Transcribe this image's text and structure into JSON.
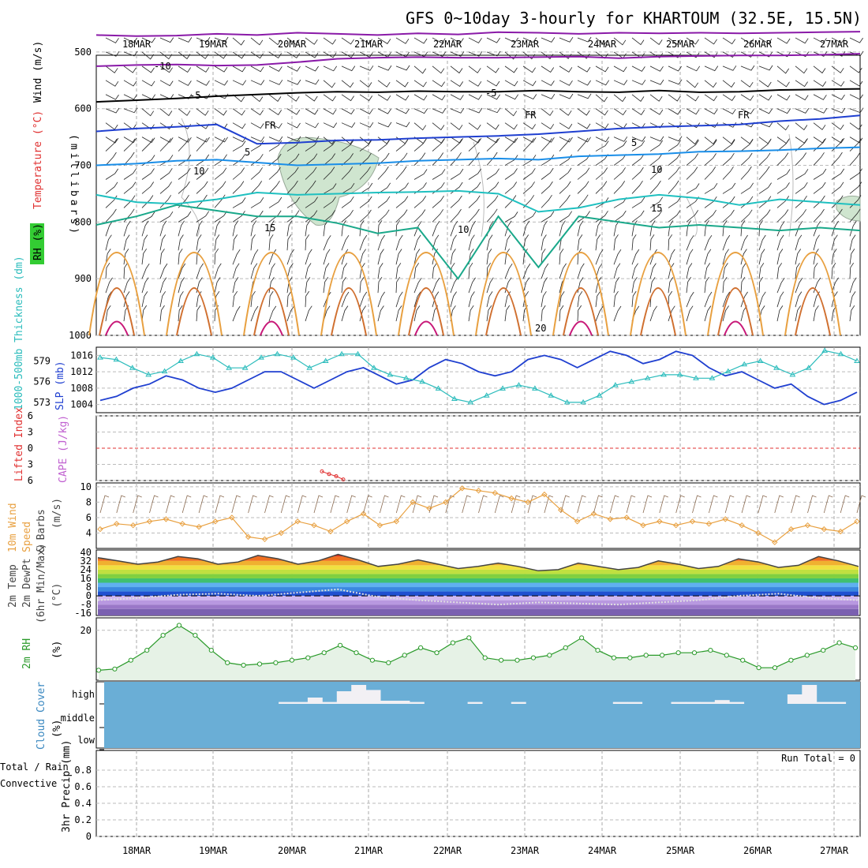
{
  "title": "GFS 0~10day 3-hourly for KHARTOUM (32.5E, 15.5N)",
  "dates": [
    "18MAR",
    "19MAR",
    "20MAR",
    "21MAR",
    "22MAR",
    "23MAR",
    "24MAR",
    "25MAR",
    "26MAR",
    "27MAR"
  ],
  "run_total": "Run Total = 0",
  "colors": {
    "cyan": "#2bbcbc",
    "blue": "#1f3fd0",
    "orange": "#e8a040",
    "red": "#e03030",
    "green": "#2a9a2a",
    "purple": "#8a1aa8",
    "cloud": "#6aaed6",
    "grid": "#999999"
  },
  "chart_data": [
    {
      "type": "line",
      "name": "upper-air",
      "ylabel_parts": [
        "Wind (m/s)",
        "Temperature (°C)",
        "RH (%)",
        "(millibars)"
      ],
      "y_ticks": [
        500,
        600,
        700,
        800,
        900,
        1000
      ],
      "ylim": [
        1000,
        450
      ],
      "contour_labels": [
        "-10",
        "-5",
        "-5",
        "FR",
        "FR",
        "FR",
        "5",
        "5",
        "10",
        "10",
        "10",
        "15",
        "15",
        "20",
        "20"
      ],
      "isotherms": [
        {
          "name": "-10",
          "color": "#8a1aa8",
          "values": [
            470,
            472,
            471,
            468,
            470,
            466,
            468,
            470,
            467,
            469,
            465,
            466,
            468,
            466,
            467,
            466,
            467,
            466,
            465,
            464
          ]
        },
        {
          "name": "-5",
          "color": "#8a1aa8",
          "values": [
            525,
            523,
            522,
            524,
            523,
            518,
            512,
            510,
            509,
            510,
            510,
            509,
            508,
            511,
            508,
            507,
            506,
            506,
            505,
            503
          ]
        },
        {
          "name": "FR",
          "color": "#000000",
          "values": [
            588,
            585,
            582,
            578,
            575,
            572,
            570,
            571,
            569,
            570,
            570,
            568,
            570,
            571,
            568,
            571,
            570,
            567,
            566,
            565
          ]
        },
        {
          "name": "5",
          "color": "#1f3fd0",
          "values": [
            640,
            635,
            632,
            628,
            662,
            660,
            656,
            655,
            652,
            650,
            648,
            645,
            640,
            635,
            632,
            630,
            628,
            622,
            618,
            612
          ]
        },
        {
          "name": "10",
          "color": "#1a8ee8",
          "values": [
            700,
            697,
            692,
            690,
            695,
            700,
            698,
            696,
            692,
            690,
            688,
            690,
            684,
            682,
            680,
            676,
            675,
            673,
            670,
            668
          ]
        },
        {
          "name": "15",
          "color": "#1fc0c0",
          "values": [
            752,
            765,
            768,
            760,
            748,
            752,
            750,
            748,
            747,
            745,
            750,
            782,
            775,
            760,
            752,
            758,
            770,
            760,
            765,
            770
          ]
        },
        {
          "name": "20",
          "color": "#1aa88a",
          "values": [
            805,
            790,
            770,
            780,
            790,
            790,
            802,
            820,
            810,
            900,
            790,
            880,
            790,
            800,
            810,
            805,
            810,
            815,
            810,
            815
          ]
        }
      ]
    },
    {
      "type": "line",
      "name": "thickness-slp",
      "ylabel_left": "1000-500mb Thickness (dm)",
      "ylabel_right": "SLP (mb)",
      "thickness_ticks": [
        573,
        576,
        579
      ],
      "slp_ticks": [
        1004,
        1008,
        1012,
        1016
      ],
      "series": [
        {
          "name": "SLP (mb)",
          "color": "#1f3fd0",
          "values": [
            1005,
            1006,
            1008,
            1009,
            1011,
            1010,
            1008,
            1007,
            1008,
            1010,
            1012,
            1012,
            1010,
            1008,
            1010,
            1012,
            1013,
            1011,
            1009,
            1010,
            1013,
            1015,
            1014,
            1012,
            1011,
            1012,
            1015,
            1016,
            1015,
            1013,
            1015,
            1017,
            1016,
            1014,
            1015,
            1017,
            1016,
            1013,
            1011,
            1012,
            1010,
            1008,
            1009,
            1006,
            1004,
            1005,
            1007
          ]
        },
        {
          "name": "1000-500mb Thickness (dm)",
          "color": "#2bbcbc",
          "values": [
            579.5,
            579.2,
            578,
            577,
            577.5,
            579,
            580,
            579.5,
            578,
            578,
            579.5,
            580,
            579.5,
            578,
            579,
            580,
            580,
            578,
            577,
            576.5,
            576,
            575,
            573.5,
            573,
            574,
            575,
            575.5,
            575,
            574,
            573,
            573,
            574,
            575.5,
            576,
            576.5,
            577,
            577,
            576.5,
            576.5,
            577.5,
            578.5,
            579,
            578,
            577,
            578,
            580.5,
            580,
            579
          ]
        }
      ]
    },
    {
      "type": "line",
      "name": "stability",
      "ylabel_left": "Lifted Index",
      "ylabel_right": "CAPE (J/kg)",
      "y_ticks": [
        -6,
        -3,
        0,
        3,
        6
      ],
      "ylim": [
        -6,
        6
      ],
      "series": [
        {
          "name": "Lifted Index",
          "color": "#e03030",
          "values": [
            4.3,
            4.8,
            5.2,
            5.8
          ]
        }
      ]
    },
    {
      "type": "line",
      "name": "10m-wind",
      "ylabel_parts": [
        "10m Wind",
        "Speed",
        "& Barbs",
        "(m/s)"
      ],
      "y_ticks": [
        4,
        6,
        8,
        10
      ],
      "ylim": [
        2,
        10.5
      ],
      "series": [
        {
          "name": "10m Wind Speed",
          "color": "#e8a040",
          "values": [
            4.5,
            5.2,
            5.0,
            5.5,
            5.8,
            5.2,
            4.8,
            5.5,
            6.0,
            3.5,
            3.2,
            4.0,
            5.5,
            5.0,
            4.2,
            5.5,
            6.5,
            5.0,
            5.5,
            8.0,
            7.2,
            8.0,
            9.8,
            9.5,
            9.2,
            8.5,
            8.0,
            9.0,
            7.0,
            5.5,
            6.5,
            5.8,
            6.0,
            5.0,
            5.5,
            5.0,
            5.5,
            5.2,
            5.8,
            5.0,
            4.0,
            2.8,
            4.5,
            5.0,
            4.5,
            4.2,
            5.5
          ]
        }
      ]
    },
    {
      "type": "area",
      "name": "2m-temp",
      "ylabel_parts": [
        "2m Temp",
        "2m DewPt",
        "(6hr Min/Max)",
        "(°C)"
      ],
      "y_ticks": [
        -16,
        -8,
        0,
        8,
        16,
        24,
        32,
        40
      ],
      "ylim": [
        -16,
        40
      ],
      "series": [
        {
          "name": "2m Temp",
          "color": "#333333",
          "values": [
            35,
            32,
            29,
            31,
            36,
            34,
            29,
            31,
            37,
            34,
            29,
            32,
            38,
            33,
            27,
            29,
            33,
            29,
            25,
            27,
            30,
            27,
            23,
            24,
            30,
            27,
            24,
            26,
            32,
            29,
            25,
            27,
            34,
            31,
            26,
            28,
            36,
            32,
            27
          ]
        },
        {
          "name": "2m DewPt",
          "color": "#444444",
          "values": [
            -4,
            -2,
            1,
            2,
            0,
            3,
            6,
            -1,
            -4,
            -6,
            -8,
            -6,
            -7,
            -8,
            -6,
            -4,
            0,
            2,
            -2,
            -4
          ]
        }
      ]
    },
    {
      "type": "area",
      "name": "2m-rh",
      "ylabel_parts": [
        "2m RH",
        "(%)"
      ],
      "y_ticks": [
        20
      ],
      "ylim": [
        0,
        25
      ],
      "series": [
        {
          "name": "2m RH",
          "color": "#2a9a2a",
          "values": [
            4,
            4.5,
            8,
            12,
            18,
            22,
            18,
            12,
            7,
            6,
            6.5,
            7,
            8,
            9,
            11,
            14,
            11,
            8,
            7,
            10,
            13,
            11,
            15,
            17,
            9,
            8,
            8,
            9,
            10,
            13,
            17,
            12,
            9,
            9,
            10,
            10,
            11,
            11,
            12,
            10,
            8,
            5,
            5,
            8,
            10,
            12,
            15,
            13
          ]
        }
      ]
    },
    {
      "type": "bar",
      "name": "cloud-cover",
      "ylabel_parts": [
        "Cloud Cover",
        "(%)"
      ],
      "levels": [
        "high",
        "middle",
        "low"
      ],
      "series": [
        {
          "name": "high",
          "values": [
            0,
            0,
            0,
            0,
            0,
            0,
            0,
            0,
            0,
            0,
            0,
            0,
            3,
            3,
            10,
            3,
            20,
            30,
            22,
            5,
            5,
            3,
            0,
            0,
            0,
            3,
            0,
            0,
            3,
            0,
            0,
            0,
            0,
            0,
            0,
            3,
            3,
            0,
            0,
            3,
            3,
            3,
            6,
            3,
            0,
            0,
            0,
            15,
            30,
            3,
            3,
            0
          ]
        }
      ]
    },
    {
      "type": "bar",
      "name": "precip",
      "ylabel_parts": [
        "Total / Rain",
        "Convective",
        "3hr Precip (mm)"
      ],
      "y_ticks": [
        0,
        0.2,
        0.4,
        0.6,
        0.8
      ],
      "ylim": [
        0,
        1
      ],
      "series": [
        {
          "name": "Total / Rain",
          "values": [
            0,
            0,
            0,
            0,
            0,
            0,
            0,
            0,
            0,
            0
          ]
        }
      ]
    }
  ]
}
